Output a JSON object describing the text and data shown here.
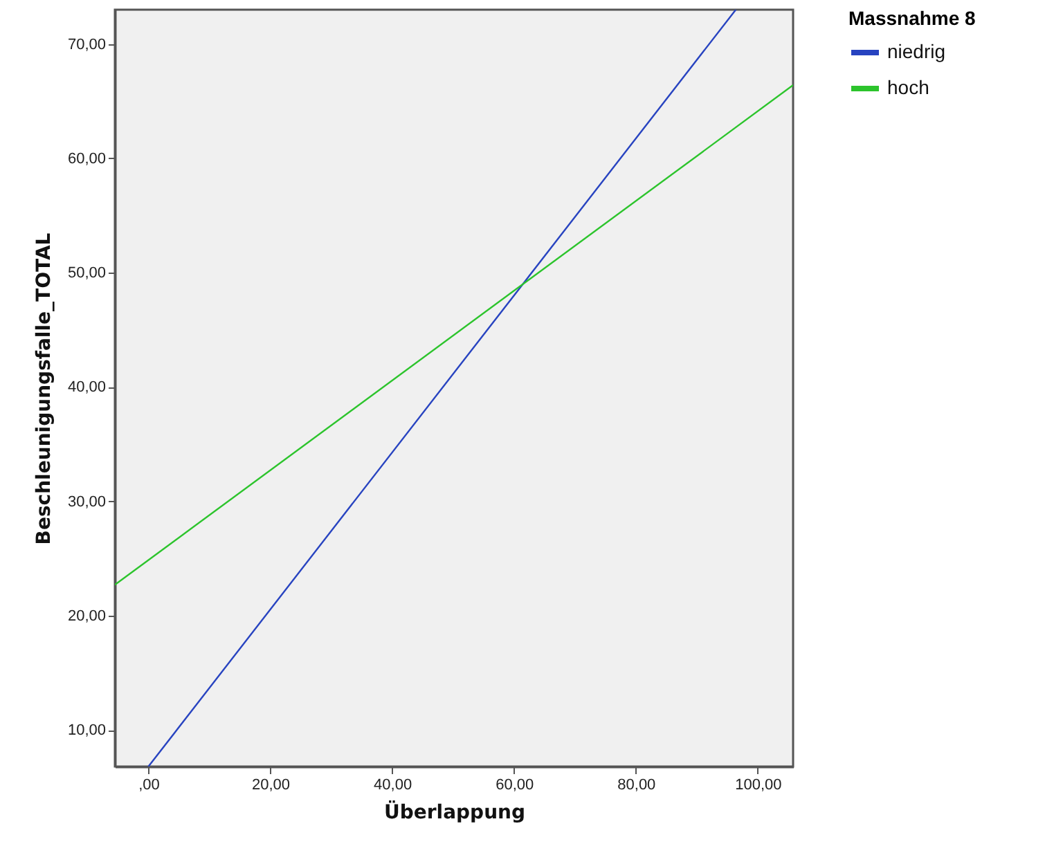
{
  "chart_data": {
    "type": "line",
    "xlabel": "Überlappung",
    "ylabel": "Beschleunigungsfalle_TOTAL",
    "legend_title": "Massnahme 8",
    "series": [
      {
        "name": "niedrig",
        "color": "#2743c0",
        "x": [
          0,
          96.4
        ],
        "values": [
          6.8,
          73
        ]
      },
      {
        "name": "hoch",
        "color": "#2cc42c",
        "x": [
          -5.5,
          105.8
        ],
        "values": [
          22.7,
          66.4
        ]
      }
    ],
    "xlim": [
      -5.5,
      105.8
    ],
    "ylim": [
      6.8,
      73
    ],
    "xticks": [
      {
        "value": 0,
        "label": ",00"
      },
      {
        "value": 20,
        "label": "20,00"
      },
      {
        "value": 40,
        "label": "40,00"
      },
      {
        "value": 60,
        "label": "60,00"
      },
      {
        "value": 80,
        "label": "80,00"
      },
      {
        "value": 100,
        "label": "100,00"
      }
    ],
    "yticks": [
      {
        "value": 10,
        "label": "10,00"
      },
      {
        "value": 20,
        "label": "20,00"
      },
      {
        "value": 30,
        "label": "30,00"
      },
      {
        "value": 40,
        "label": "40,00"
      },
      {
        "value": 50,
        "label": "50,00"
      },
      {
        "value": 60,
        "label": "60,00"
      },
      {
        "value": 70,
        "label": "70,00"
      }
    ],
    "grid": false,
    "legend": "top right",
    "marker": "none",
    "line_style": "solid"
  }
}
